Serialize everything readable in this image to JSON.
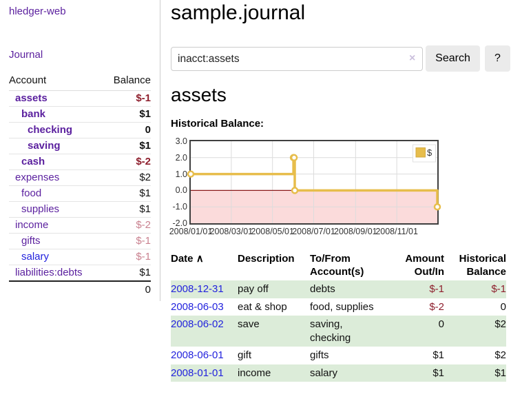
{
  "colors": {
    "link_purple": "#5a1f9e",
    "link_blue": "#2222dd",
    "negative_strong": "#8e1f2d",
    "negative_soft": "#c9818f",
    "row_stripe_green": "#dcecd9",
    "series_gold": "#e7bd4b",
    "chart_border": "#3f3f3f",
    "gridline": "#dcdcdc"
  },
  "sidebar": {
    "brand": "hledger-web",
    "journal_link": "Journal",
    "accounts_table": {
      "headers": [
        "Account",
        "Balance"
      ],
      "rows": [
        {
          "name": "assets",
          "depth": 1,
          "bold": true,
          "balance": "$-1",
          "balance_style": "neg-strong"
        },
        {
          "name": "bank",
          "depth": 2,
          "bold": true,
          "balance": "$1",
          "balance_style": "pos"
        },
        {
          "name": "checking",
          "depth": 3,
          "bold": true,
          "balance": "0",
          "balance_style": "pos"
        },
        {
          "name": "saving",
          "depth": 3,
          "bold": true,
          "balance": "$1",
          "balance_style": "pos"
        },
        {
          "name": "cash",
          "depth": 2,
          "bold": true,
          "balance": "$-2",
          "balance_style": "neg-strong"
        },
        {
          "name": "expenses",
          "depth": 1,
          "bold": false,
          "balance": "$2",
          "balance_style": "pos"
        },
        {
          "name": "food",
          "depth": 2,
          "bold": false,
          "balance": "$1",
          "balance_style": "pos"
        },
        {
          "name": "supplies",
          "depth": 2,
          "bold": false,
          "balance": "$1",
          "balance_style": "pos"
        },
        {
          "name": "income",
          "depth": 1,
          "bold": false,
          "balance": "$-2",
          "balance_style": "neg-soft"
        },
        {
          "name": "gifts",
          "depth": 2,
          "bold": false,
          "balance": "$-1",
          "balance_style": "neg-soft"
        },
        {
          "name": "salary",
          "depth": 2,
          "bold": false,
          "balance": "$-1",
          "balance_style": "neg-soft",
          "link_color": "blue"
        },
        {
          "name": "liabilities:debts",
          "depth": 1,
          "bold": false,
          "balance": "$1",
          "balance_style": "pos"
        }
      ],
      "total": "0"
    }
  },
  "main": {
    "title": "sample.journal",
    "search": {
      "value": "inacct:assets",
      "clear_icon": "×",
      "search_button": "Search",
      "help_button": "?"
    },
    "account_heading": "assets",
    "chart_label": "Historical Balance:",
    "register": {
      "headers": {
        "date": "Date",
        "sort_indicator": "∧",
        "description": "Description",
        "accounts": "To/From Account(s)",
        "amount": "Amount Out/In",
        "balance": "Historical Balance"
      },
      "rows": [
        {
          "date": "2008-12-31",
          "description": "pay off",
          "accounts": "debts",
          "amount": "$-1",
          "amount_neg": true,
          "balance": "$-1",
          "balance_neg": true,
          "shade": true
        },
        {
          "date": "2008-06-03",
          "description": "eat & shop",
          "accounts": "food, supplies",
          "amount": "$-2",
          "amount_neg": true,
          "balance": "0",
          "balance_neg": false,
          "shade": false
        },
        {
          "date": "2008-06-02",
          "description": "save",
          "accounts": "saving, checking",
          "amount": "0",
          "amount_neg": false,
          "balance": "$2",
          "balance_neg": false,
          "shade": true
        },
        {
          "date": "2008-06-01",
          "description": "gift",
          "accounts": "gifts",
          "amount": "$1",
          "amount_neg": false,
          "balance": "$2",
          "balance_neg": false,
          "shade": false
        },
        {
          "date": "2008-01-01",
          "description": "income",
          "accounts": "salary",
          "amount": "$1",
          "amount_neg": false,
          "balance": "$1",
          "balance_neg": false,
          "shade": true
        }
      ]
    }
  },
  "chart_data": {
    "type": "line",
    "step": true,
    "title": "Historical Balance:",
    "series": [
      {
        "name": "$",
        "color": "#e7bd4b",
        "points": [
          {
            "date": "2008-01-01",
            "value": 1
          },
          {
            "date": "2008-06-01",
            "value": 2
          },
          {
            "date": "2008-06-02",
            "value": 2
          },
          {
            "date": "2008-06-03",
            "value": 0
          },
          {
            "date": "2008-12-31",
            "value": -1
          }
        ]
      }
    ],
    "xlim": [
      "2008-01-01",
      "2008-12-31"
    ],
    "ylim": [
      -2,
      3
    ],
    "x_ticks": [
      "2008/01/01",
      "2008/03/01",
      "2008/05/01",
      "2008/07/01",
      "2008/09/01",
      "2008/11/01"
    ],
    "y_ticks": [
      "3.0",
      "2.0",
      "1.0",
      "0.0",
      "-1.0",
      "-2.0"
    ],
    "grid": true,
    "legend_position": "top-right",
    "negative_region_color": "#fbdbdb",
    "zero_line_color": "#8b1a1a"
  }
}
